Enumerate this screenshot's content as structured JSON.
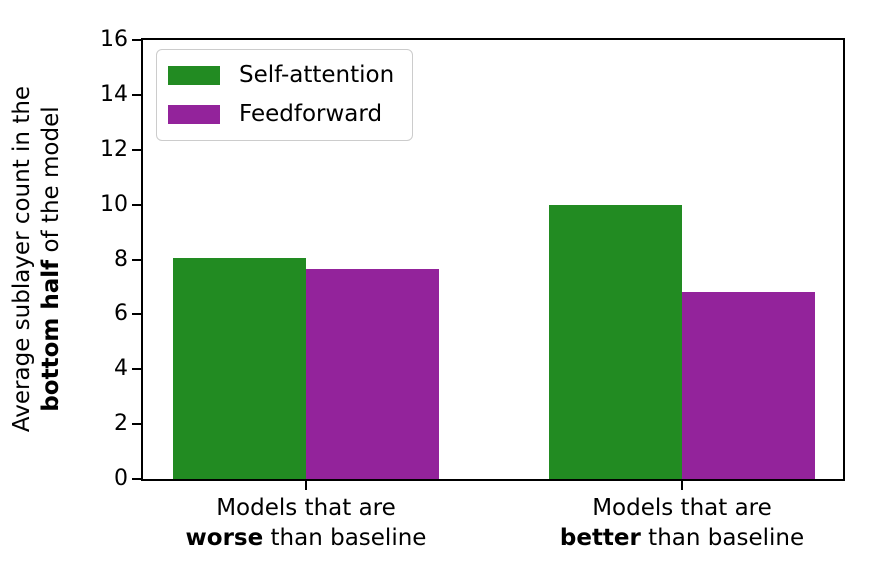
{
  "chart_data": {
    "type": "bar",
    "title": "",
    "ylabel": {
      "line1": "Average sublayer count in the",
      "line2_bold": "bottom half",
      "line2_rest": " of the model"
    },
    "ylim": [
      0,
      16
    ],
    "yticks": [
      0,
      2,
      4,
      6,
      8,
      10,
      12,
      14,
      16
    ],
    "categories": [
      {
        "line1": "Models that are",
        "line2_bold": "worse",
        "line2_rest": " than baseline"
      },
      {
        "line1": "Models that are",
        "line2_bold": "better",
        "line2_rest": " than baseline"
      }
    ],
    "series": [
      {
        "name": "Self-attention",
        "color": "#228B22",
        "values": [
          8.05,
          10.0
        ]
      },
      {
        "name": "Feedforward",
        "color": "#93239B",
        "values": [
          7.65,
          6.8
        ]
      }
    ],
    "legend_position": "upper left",
    "grid": false,
    "axis_color": "#000000",
    "legend_border_color": "#cccccc"
  }
}
